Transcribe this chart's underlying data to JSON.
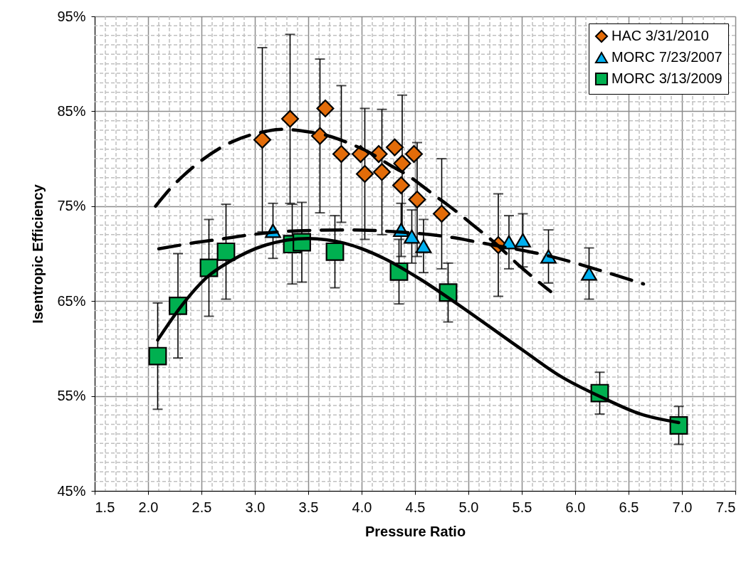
{
  "chart_data": {
    "type": "scatter",
    "xlabel": "Pressure Ratio",
    "ylabel": "Isentropic Efficiency",
    "xlim": [
      1.5,
      7.5
    ],
    "ylim": [
      45,
      95
    ],
    "xticks": [
      {
        "value": 1.5,
        "label": "1.5"
      },
      {
        "value": 2,
        "label": "2.0"
      },
      {
        "value": 2.5,
        "label": "2.5"
      },
      {
        "value": 3,
        "label": "3.0"
      },
      {
        "value": 3.5,
        "label": "3.5"
      },
      {
        "value": 4,
        "label": "4.0"
      },
      {
        "value": 4.5,
        "label": "4.5"
      },
      {
        "value": 5,
        "label": "5.0"
      },
      {
        "value": 5.5,
        "label": "5.5"
      },
      {
        "value": 6,
        "label": "6.0"
      },
      {
        "value": 6.5,
        "label": "6.5"
      },
      {
        "value": 7,
        "label": "7.0"
      },
      {
        "value": 7.5,
        "label": "7.5"
      }
    ],
    "yticks": [
      {
        "value": 45,
        "label": "45%"
      },
      {
        "value": 55,
        "label": "55%"
      },
      {
        "value": 65,
        "label": "65%"
      },
      {
        "value": 75,
        "label": "75%"
      },
      {
        "value": 85,
        "label": "85%"
      },
      {
        "value": 95,
        "label": "95%"
      }
    ],
    "grid": true,
    "legend": "top right",
    "series": [
      {
        "type": "scatter",
        "name": "HAC 3/31/2010",
        "color": "#e36c09",
        "marker": "diamond",
        "x": [
          3.07,
          3.33,
          3.66,
          3.61,
          3.81,
          3.99,
          4.03,
          4.16,
          4.19,
          4.31,
          4.38,
          4.49,
          4.37,
          4.52,
          4.75,
          5.28
        ],
        "values": [
          82.0,
          84.2,
          85.3,
          82.4,
          80.5,
          80.5,
          78.4,
          80.5,
          78.6,
          81.2,
          79.5,
          80.5,
          77.2,
          75.7,
          74.2,
          70.9
        ],
        "errors": [
          9.7,
          8.9,
          null,
          8.1,
          7.2,
          null,
          6.9,
          null,
          6.6,
          null,
          7.2,
          null,
          null,
          6.0,
          5.8,
          5.4
        ]
      },
      {
        "type": "scatter",
        "name": "MORC 7/23/2007",
        "color": "#00b0f0",
        "marker": "triangle",
        "x": [
          3.17,
          4.37,
          4.47,
          4.58,
          5.38,
          5.51,
          5.75,
          6.13
        ],
        "values": [
          72.4,
          72.5,
          71.8,
          70.8,
          71.2,
          71.4,
          69.7,
          67.9
        ],
        "errors": [
          2.9,
          2.8,
          2.8,
          2.8,
          2.8,
          2.8,
          2.8,
          2.7
        ]
      },
      {
        "type": "scatter",
        "name": "MORC 3/13/2009",
        "color": "#00b050",
        "marker": "square",
        "x": [
          2.09,
          2.28,
          2.57,
          2.73,
          3.35,
          3.44,
          3.75,
          4.35,
          4.81,
          6.23,
          6.97
        ],
        "values": [
          59.2,
          64.5,
          68.5,
          70.2,
          71.0,
          71.2,
          70.2,
          68.1,
          65.9,
          55.3,
          51.9
        ],
        "errors": [
          5.6,
          5.5,
          5.1,
          5.0,
          4.2,
          4.2,
          3.8,
          3.4,
          3.1,
          2.2,
          2.0
        ]
      },
      {
        "type": "line",
        "color": "#000000",
        "line_style": "dashed",
        "x": [
          2.07,
          2.22,
          2.32,
          2.67,
          2.79,
          3.11,
          3.25,
          3.52,
          3.66,
          3.91,
          4.05,
          4.27,
          4.41,
          4.7,
          4.81,
          5.1,
          5.21,
          5.5,
          5.77
        ],
        "values": [
          75.0,
          77.0,
          78.1,
          81.1,
          81.8,
          82.9,
          83.1,
          82.8,
          82.5,
          81.5,
          80.8,
          79.3,
          78.4,
          76.0,
          75.1,
          72.5,
          71.5,
          68.5,
          66.0
        ]
      },
      {
        "type": "line",
        "color": "#000000",
        "line_style": "dashed",
        "x": [
          2.1,
          2.41,
          2.66,
          2.9,
          3.39,
          3.88,
          4.32,
          4.85,
          5.09,
          5.81,
          6.3,
          6.64
        ],
        "values": [
          70.5,
          71.1,
          71.5,
          71.9,
          72.4,
          72.5,
          72.3,
          71.7,
          71.2,
          69.6,
          68.0,
          66.8
        ]
      },
      {
        "type": "line",
        "color": "#000000",
        "line_style": "solid",
        "x": [
          2.09,
          2.32,
          2.55,
          2.77,
          3.1,
          3.5,
          3.84,
          4.21,
          4.55,
          4.87,
          5.5,
          5.86,
          6.26,
          6.61,
          6.97
        ],
        "values": [
          60.9,
          64.6,
          67.5,
          69.2,
          70.9,
          71.6,
          71.1,
          69.5,
          67.3,
          64.9,
          59.9,
          57.1,
          54.8,
          53.1,
          52.2
        ]
      }
    ]
  }
}
